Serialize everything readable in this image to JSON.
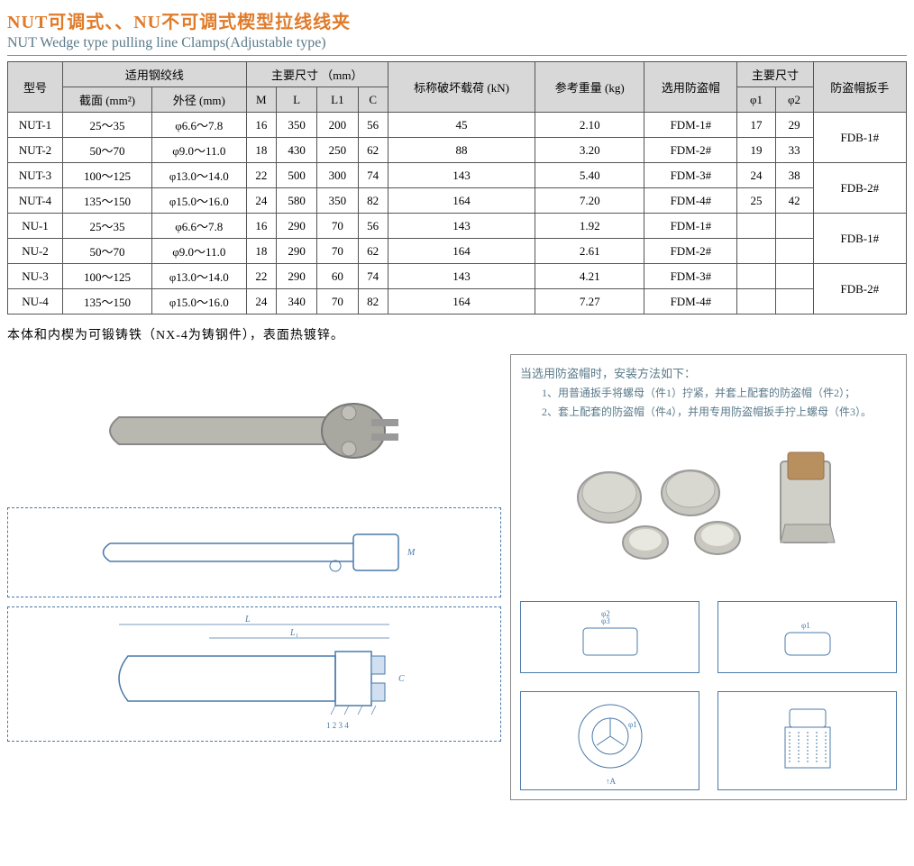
{
  "title_cn": "NUT可调式、、NU不可调式楔型拉线线夹",
  "title_en": "NUT Wedge type pulling line Clamps(Adjustable type)",
  "headers": {
    "model": "型号",
    "wire": "适用钢绞线",
    "section": "截面 (mm²)",
    "diameter": "外径 (mm)",
    "main_dims": "主要尺寸 （mm）",
    "M": "M",
    "L": "L",
    "L1": "L1",
    "C": "C",
    "load": "标称破坏载荷 (kN)",
    "weight": "参考重量 (kg)",
    "cap": "选用防盗帽",
    "sub_dims": "主要尺寸",
    "phi1": "φ1",
    "phi2": "φ2",
    "wrench": "防盗帽扳手"
  },
  "rows": [
    {
      "model": "NUT-1",
      "section": "25～35",
      "dia": "φ6.6～7.8",
      "M": "16",
      "L": "350",
      "L1": "200",
      "C": "56",
      "load": "45",
      "weight": "2.10",
      "cap": "FDM-1#",
      "p1": "17",
      "p2": "29"
    },
    {
      "model": "NUT-2",
      "section": "50～70",
      "dia": "φ9.0～11.0",
      "M": "18",
      "L": "430",
      "L1": "250",
      "C": "62",
      "load": "88",
      "weight": "3.20",
      "cap": "FDM-2#",
      "p1": "19",
      "p2": "33"
    },
    {
      "model": "NUT-3",
      "section": "100～125",
      "dia": "φ13.0～14.0",
      "M": "22",
      "L": "500",
      "L1": "300",
      "C": "74",
      "load": "143",
      "weight": "5.40",
      "cap": "FDM-3#",
      "p1": "24",
      "p2": "38"
    },
    {
      "model": "NUT-4",
      "section": "135～150",
      "dia": "φ15.0～16.0",
      "M": "24",
      "L": "580",
      "L1": "350",
      "C": "82",
      "load": "164",
      "weight": "7.20",
      "cap": "FDM-4#",
      "p1": "25",
      "p2": "42"
    },
    {
      "model": "NU-1",
      "section": "25～35",
      "dia": "φ6.6～7.8",
      "M": "16",
      "L": "290",
      "L1": "70",
      "C": "56",
      "load": "143",
      "weight": "1.92",
      "cap": "FDM-1#",
      "p1": "",
      "p2": ""
    },
    {
      "model": "NU-2",
      "section": "50～70",
      "dia": "φ9.0～11.0",
      "M": "18",
      "L": "290",
      "L1": "70",
      "C": "62",
      "load": "164",
      "weight": "2.61",
      "cap": "FDM-2#",
      "p1": "",
      "p2": ""
    },
    {
      "model": "NU-3",
      "section": "100～125",
      "dia": "φ13.0～14.0",
      "M": "22",
      "L": "290",
      "L1": "60",
      "C": "74",
      "load": "143",
      "weight": "4.21",
      "cap": "FDM-3#",
      "p1": "",
      "p2": ""
    },
    {
      "model": "NU-4",
      "section": "135～150",
      "dia": "φ15.0～16.0",
      "M": "24",
      "L": "340",
      "L1": "70",
      "C": "82",
      "load": "164",
      "weight": "7.27",
      "cap": "FDM-4#",
      "p1": "",
      "p2": ""
    }
  ],
  "wrenches": [
    "FDB-1#",
    "FDB-2#",
    "FDB-1#",
    "FDB-2#"
  ],
  "note": "本体和内楔为可锻铸铁（NX-4为铸钢件），表面热镀锌。",
  "inst_title": "当选用防盗帽时，安装方法如下：",
  "inst_1": "1、用普通扳手将螺母（件1）拧紧，并套上配套的防盗帽（件2）；",
  "inst_2": "2、套上配套的防盗帽（件4），并用专用防盗帽扳手拧上螺母（件3）。",
  "img_labels": {
    "product": "[产品照片 / Product Photo]",
    "diag_side": "[侧视图 / Side View — M]",
    "diag_top": "[俯视图 / Top View — L, L₁, C, 1 2 3 4]",
    "hardware": "[防盗帽零件照片 / Anti-theft Cap Parts]",
    "cap_dim1": "[φ2 φ3]",
    "cap_dim2": "[φ1]",
    "cap_dim3": "[φ1 ↑A]",
    "cap_dim4": "[尺寸图]"
  },
  "colors": {
    "title_cn": "#e07b2a",
    "title_en": "#5a7a8a",
    "border": "#555555",
    "header_bg": "#d8d8d8",
    "diagram_line": "#4a7aaa"
  }
}
